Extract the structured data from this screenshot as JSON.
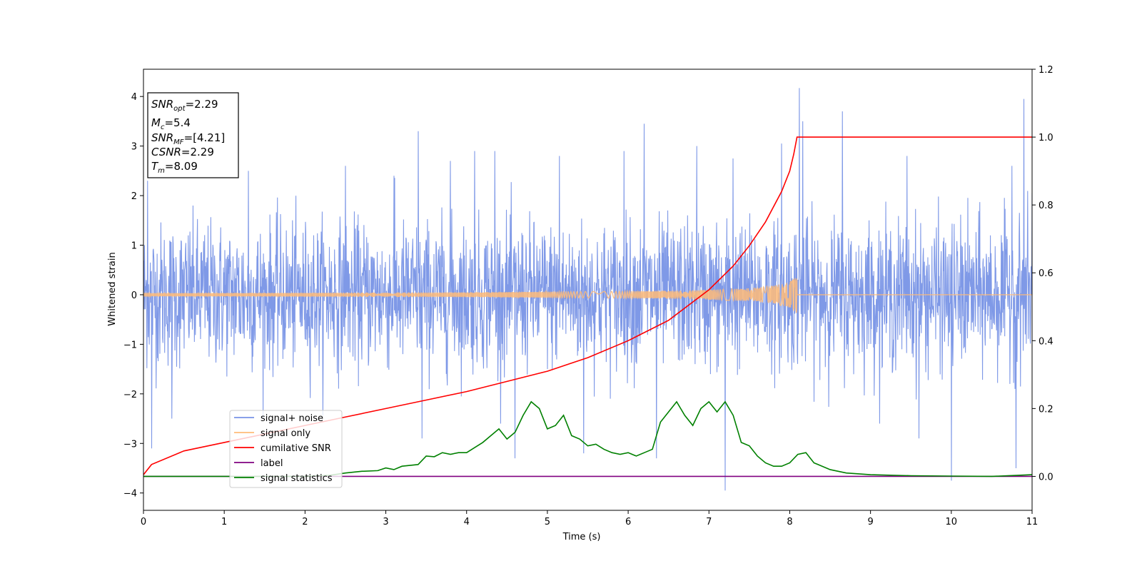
{
  "chart_data": {
    "type": "line",
    "xlabel": "Time (s)",
    "ylabel": "Whitened strain",
    "xlim": [
      0,
      11
    ],
    "ylim_left": [
      -4.35,
      4.55
    ],
    "ylim_right": [
      -0.1,
      1.2
    ],
    "x_ticks": [
      "0",
      "1",
      "2",
      "3",
      "4",
      "5",
      "6",
      "7",
      "8",
      "9",
      "10",
      "11"
    ],
    "y_ticks_left": [
      "−4",
      "−3",
      "−2",
      "−1",
      "0",
      "1",
      "2",
      "3",
      "4"
    ],
    "y_ticks_right": [
      "0.0",
      "0.2",
      "0.4",
      "0.6",
      "0.8",
      "1.0",
      "1.2"
    ],
    "grid": false,
    "legend_position": "lower-left",
    "annotation": {
      "snr_opt_var": "SNR",
      "snr_opt_sub": "opt",
      "snr_opt_val": "=2.29",
      "mc_var": "M",
      "mc_sub": "c",
      "mc_val": "=5.4",
      "snr_mf_var": "SNR",
      "snr_mf_sub": "MF",
      "snr_mf_val": "=[4.21]",
      "csnr_var": "CSNR",
      "csnr_val": "=2.29",
      "tm_var": "T",
      "tm_sub": "m",
      "tm_val": "=8.09"
    },
    "series": [
      {
        "name": "signal+ noise",
        "color": "#7893e6",
        "axis": "left",
        "description_values": {
          "band_core": [
            -1.4,
            1.4
          ],
          "peaks": [
            [
              0.05,
              2.3
            ],
            [
              0.1,
              -3.1
            ],
            [
              0.35,
              -2.5
            ],
            [
              1.3,
              2.5
            ],
            [
              2.5,
              2.6
            ],
            [
              3.1,
              2.4
            ],
            [
              3.4,
              3.3
            ],
            [
              3.45,
              -2.9
            ],
            [
              3.8,
              2.7
            ],
            [
              4.1,
              2.9
            ],
            [
              4.35,
              2.9
            ],
            [
              4.6,
              -3.3
            ],
            [
              5.15,
              2.8
            ],
            [
              5.45,
              -3.2
            ],
            [
              5.95,
              2.9
            ],
            [
              6.2,
              3.45
            ],
            [
              6.35,
              -3.3
            ],
            [
              6.85,
              3.0
            ],
            [
              7.2,
              -3.95
            ],
            [
              7.3,
              2.75
            ],
            [
              7.9,
              3.05
            ],
            [
              8.12,
              4.17
            ],
            [
              8.16,
              3.5
            ],
            [
              8.65,
              3.7
            ],
            [
              9.45,
              2.8
            ],
            [
              9.6,
              -2.9
            ],
            [
              10.0,
              -3.75
            ],
            [
              10.75,
              2.6
            ],
            [
              10.8,
              -3.5
            ],
            [
              10.9,
              3.95
            ],
            [
              11.0,
              2.05
            ]
          ]
        }
      },
      {
        "name": "signal only",
        "color": "#ffbb78",
        "axis": "left",
        "envelope": {
          "t": [
            0,
            2,
            4,
            5,
            6,
            6.5,
            7,
            7.5,
            7.8,
            8.0,
            8.09
          ],
          "amp": [
            0.03,
            0.04,
            0.05,
            0.06,
            0.07,
            0.08,
            0.1,
            0.13,
            0.18,
            0.26,
            0.38
          ]
        }
      },
      {
        "name": "cumilative SNR",
        "color": "#ff0000",
        "axis": "right",
        "x": [
          0,
          0.1,
          0.5,
          1,
          1.5,
          2,
          2.5,
          3,
          3.5,
          4,
          4.5,
          5,
          5.5,
          6,
          6.5,
          7,
          7.3,
          7.5,
          7.7,
          7.9,
          8.0,
          8.05,
          8.09,
          8.1,
          11
        ],
        "y": [
          0.005,
          0.035,
          0.075,
          0.1,
          0.125,
          0.15,
          0.175,
          0.2,
          0.225,
          0.25,
          0.28,
          0.31,
          0.35,
          0.4,
          0.46,
          0.55,
          0.62,
          0.68,
          0.75,
          0.84,
          0.9,
          0.95,
          1.0,
          1.0,
          1.0
        ]
      },
      {
        "name": "label",
        "color": "#800080",
        "axis": "right",
        "x": [
          0,
          11
        ],
        "y": [
          0.0,
          0.0
        ]
      },
      {
        "name": "signal statistics",
        "color": "#008000",
        "axis": "right",
        "x": [
          0,
          0.5,
          1,
          1.5,
          2,
          2.3,
          2.5,
          2.7,
          2.9,
          3.0,
          3.1,
          3.2,
          3.4,
          3.5,
          3.6,
          3.7,
          3.8,
          3.9,
          4.0,
          4.1,
          4.2,
          4.3,
          4.4,
          4.5,
          4.55,
          4.6,
          4.7,
          4.8,
          4.9,
          5.0,
          5.1,
          5.2,
          5.3,
          5.4,
          5.5,
          5.6,
          5.7,
          5.8,
          5.9,
          6.0,
          6.1,
          6.2,
          6.3,
          6.4,
          6.5,
          6.6,
          6.7,
          6.8,
          6.9,
          7.0,
          7.1,
          7.2,
          7.3,
          7.4,
          7.5,
          7.6,
          7.7,
          7.8,
          7.9,
          8.0,
          8.1,
          8.2,
          8.3,
          8.5,
          8.7,
          9.0,
          9.5,
          10.0,
          10.5,
          11.0
        ],
        "y": [
          0.0,
          0.0,
          0.0,
          0.0,
          0.0,
          0.003,
          0.01,
          0.015,
          0.017,
          0.025,
          0.02,
          0.03,
          0.035,
          0.06,
          0.058,
          0.07,
          0.065,
          0.07,
          0.07,
          0.085,
          0.1,
          0.12,
          0.14,
          0.11,
          0.12,
          0.13,
          0.18,
          0.22,
          0.2,
          0.14,
          0.15,
          0.18,
          0.12,
          0.11,
          0.09,
          0.095,
          0.08,
          0.07,
          0.065,
          0.07,
          0.06,
          0.07,
          0.08,
          0.16,
          0.19,
          0.22,
          0.18,
          0.15,
          0.2,
          0.22,
          0.19,
          0.22,
          0.18,
          0.1,
          0.09,
          0.06,
          0.04,
          0.03,
          0.03,
          0.04,
          0.065,
          0.07,
          0.04,
          0.02,
          0.01,
          0.005,
          0.002,
          0.001,
          0.0,
          0.005
        ]
      }
    ]
  }
}
